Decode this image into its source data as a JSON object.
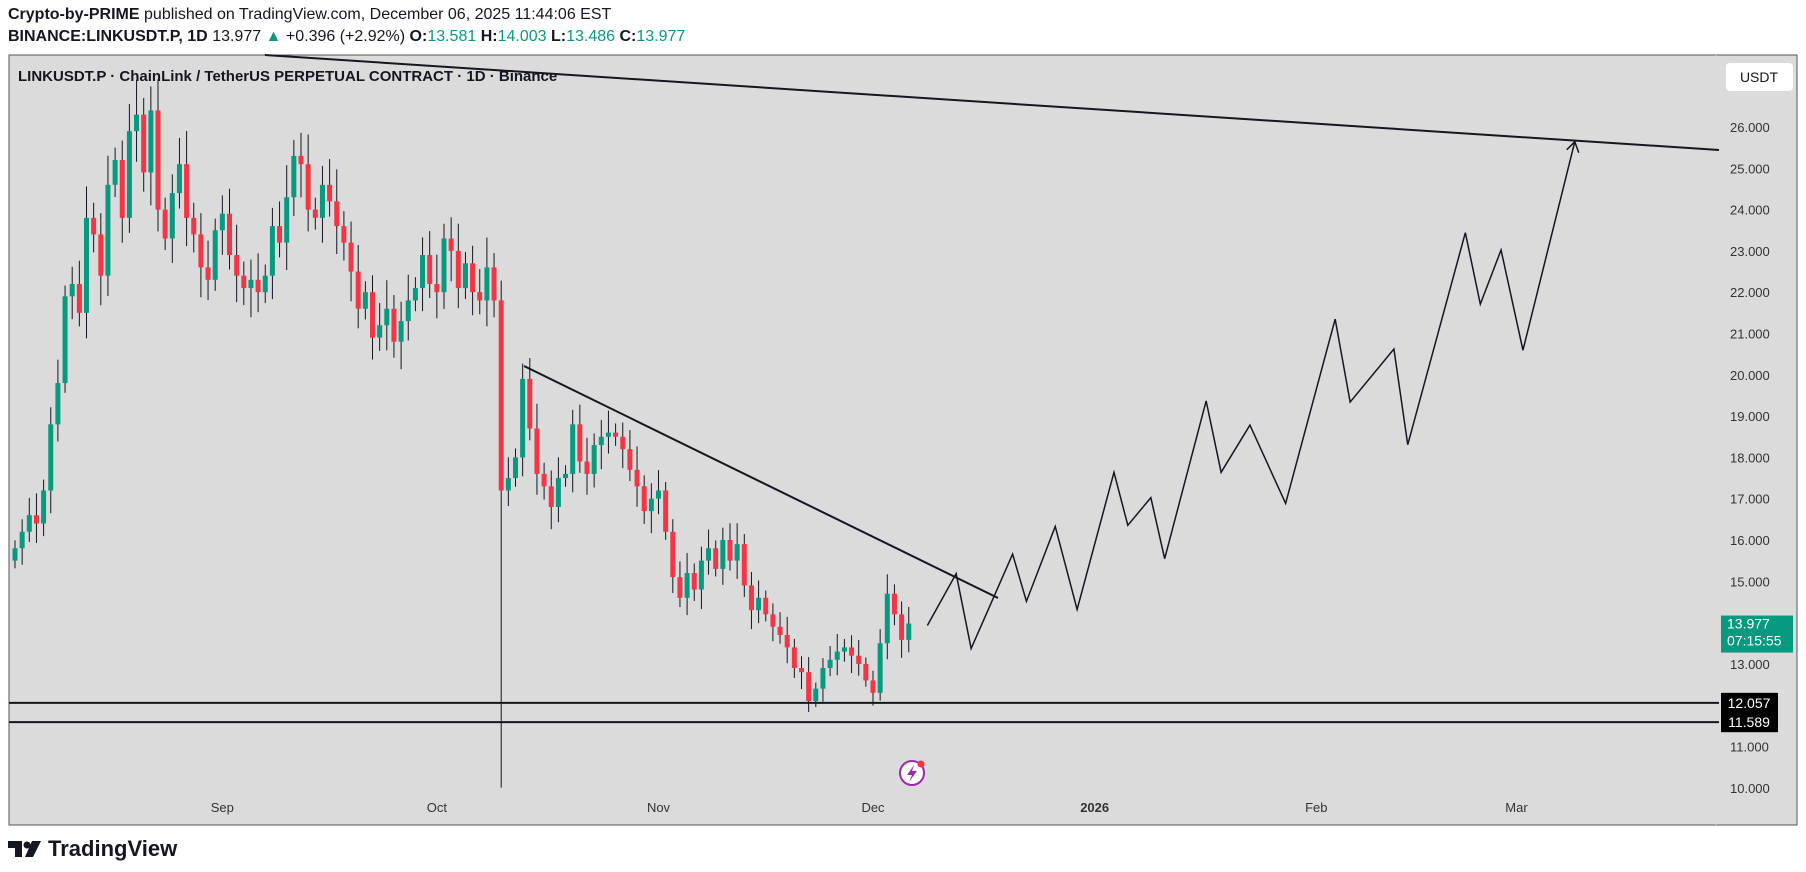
{
  "header": {
    "author": "Crypto-by-PRIME",
    "published": "published on TradingView.com, December 06, 2025 11:44:06 EST",
    "symbol": "BINANCE:LINKUSDT.P, 1D",
    "last": "13.977",
    "change": "+0.396 (+2.92%)",
    "o_label": "O:",
    "o": "13.581",
    "h_label": "H:",
    "h": "14.003",
    "l_label": "L:",
    "l": "13.486",
    "c_label": "C:",
    "c": "13.977"
  },
  "chart_data": {
    "type": "candlestick",
    "title": "LINKUSDT.P · ChainLink / TetherUS PERPETUAL CONTRACT · 1D · Binance",
    "currency_button": "USDT",
    "start_date": "2025-08-03",
    "interval": "1D",
    "closes": [
      15.8,
      16.2,
      16.6,
      16.4,
      17.2,
      18.8,
      19.8,
      21.9,
      22.2,
      21.5,
      23.8,
      23.4,
      22.4,
      24.6,
      25.2,
      23.8,
      25.9,
      26.3,
      24.9,
      26.4,
      24.0,
      23.3,
      24.4,
      25.1,
      23.8,
      23.4,
      22.6,
      22.3,
      23.5,
      23.9,
      22.9,
      22.4,
      22.1,
      22.3,
      22.0,
      22.4,
      23.6,
      23.2,
      24.3,
      25.3,
      25.1,
      24.0,
      23.8,
      24.6,
      24.2,
      23.6,
      23.2,
      22.5,
      21.6,
      22.0,
      20.9,
      21.2,
      21.6,
      20.8,
      21.3,
      21.8,
      22.1,
      22.9,
      22.2,
      22.0,
      23.3,
      23.0,
      22.1,
      22.7,
      22.0,
      21.8,
      22.6,
      21.8,
      17.2,
      17.5,
      18.0,
      19.9,
      18.7,
      17.6,
      17.3,
      16.8,
      17.5,
      17.6,
      18.8,
      17.9,
      17.6,
      18.3,
      18.5,
      18.6,
      18.5,
      18.2,
      17.7,
      17.3,
      16.7,
      17.0,
      17.2,
      16.2,
      15.1,
      14.6,
      15.2,
      14.8,
      15.5,
      15.8,
      15.3,
      16.0,
      15.5,
      15.9,
      14.9,
      14.3,
      14.6,
      14.2,
      13.9,
      13.7,
      13.4,
      12.9,
      12.8,
      12.1,
      12.4,
      12.9,
      13.1,
      13.3,
      13.4,
      13.2,
      13.0,
      12.6,
      12.3,
      13.5,
      14.7,
      14.2,
      13.581,
      13.977
    ],
    "y_ticks": [
      "26.000",
      "25.000",
      "24.000",
      "23.000",
      "22.000",
      "21.000",
      "20.000",
      "19.000",
      "18.000",
      "17.000",
      "16.000",
      "15.000",
      "13.000",
      "11.000",
      "10.000"
    ],
    "x_ticks": [
      {
        "label": "Sep",
        "date": "2025-09-01"
      },
      {
        "label": "Oct",
        "date": "2025-10-01"
      },
      {
        "label": "Nov",
        "date": "2025-11-01"
      },
      {
        "label": "Dec",
        "date": "2025-12-01"
      },
      {
        "label": "2026",
        "date": "2026-01-01"
      },
      {
        "label": "Feb",
        "date": "2026-02-01"
      },
      {
        "label": "Mar",
        "date": "2026-03-01"
      }
    ],
    "ylim": [
      10,
      26.8
    ],
    "price_label": {
      "value": "13.977",
      "countdown": "07:15:55"
    },
    "horizontal_levels": [
      "12.057",
      "11.589"
    ],
    "colors": {
      "up": "#089981",
      "down": "#f23645",
      "background": "#dbdbdb"
    }
  },
  "footer": {
    "brand": "TradingView"
  }
}
